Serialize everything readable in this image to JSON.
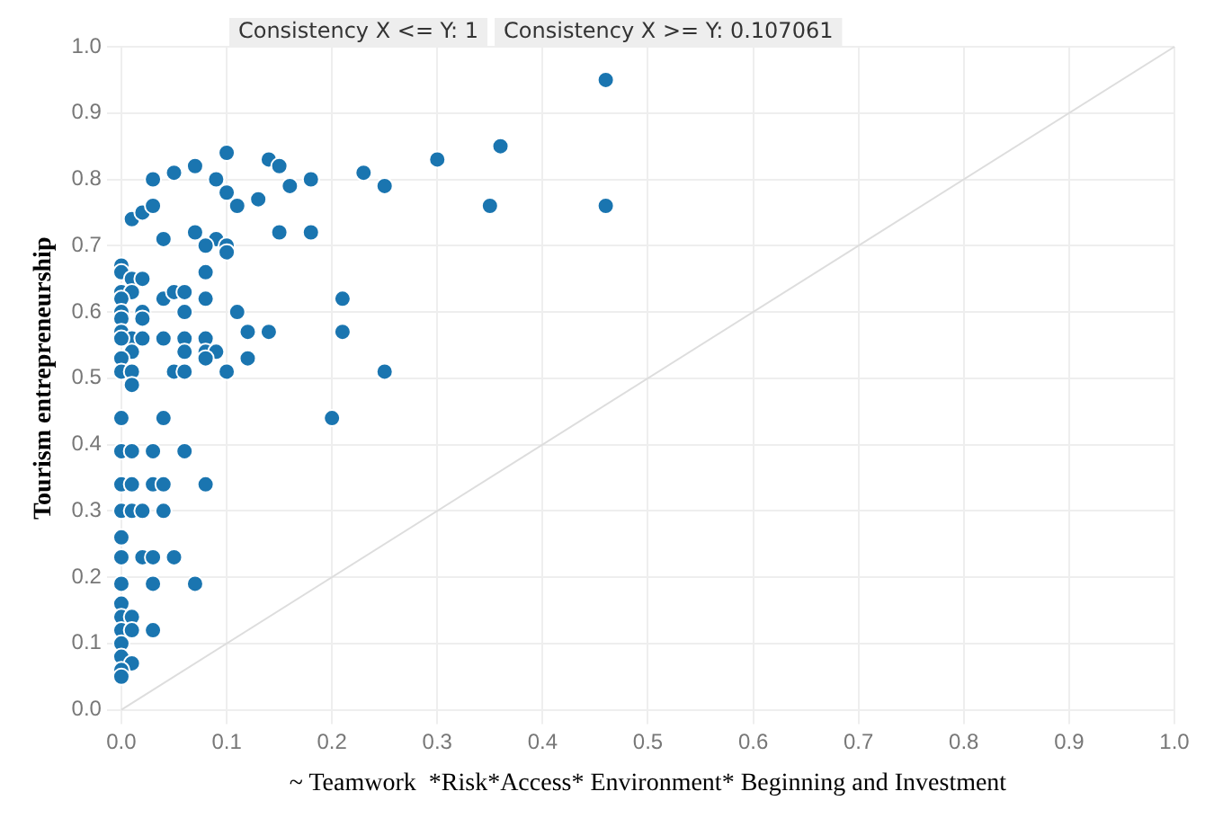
{
  "chart_data": {
    "type": "scatter",
    "xlabel": "~ Teamwork  *Risk*Access* Environment* Beginning and Investment",
    "ylabel": "Tourism entrepreneurship",
    "annotations": [
      "Consistency X <= Y: 1",
      "Consistency X >= Y: 0.107061"
    ],
    "xlim": [
      0,
      1
    ],
    "xticks": [
      {
        "value": 0,
        "label": "0.0"
      },
      0.1,
      0.2,
      0.3,
      0.4,
      0.5,
      0.6,
      0.7,
      0.8,
      0.9,
      {
        "value": 1,
        "label": "1.0"
      }
    ],
    "ylim": [
      0,
      1
    ],
    "yticks": [
      {
        "value": 0,
        "label": "0.0"
      },
      0.1,
      0.2,
      0.3,
      0.4,
      0.5,
      0.6,
      0.7,
      0.8,
      0.9,
      {
        "value": 1,
        "label": "1.0"
      }
    ],
    "grid": true,
    "marker": "circle",
    "series": [
      {
        "color": "#1a75b0",
        "x": [
          0.46,
          0.36,
          0.3,
          0.35,
          0.46,
          0.23,
          0.25,
          0.21,
          0.21,
          0.25,
          0.15,
          0.18,
          0.16,
          0.18,
          0.14,
          0.15,
          0.14,
          0.1,
          0.03,
          0.05,
          0.07,
          0.09,
          0.1,
          0.11,
          0.13,
          0.01,
          0.02,
          0.03,
          0.04,
          0.07,
          0.09,
          0.08,
          0.1,
          0.1,
          0,
          0,
          0.01,
          0.02,
          0.08,
          0,
          0.01,
          0.04,
          0.05,
          0.06,
          0.08,
          0,
          0,
          0.02,
          0,
          0.02,
          0.06,
          0.11,
          0.12,
          0,
          0.01,
          0,
          0.02,
          0.04,
          0.06,
          0.08,
          0.01,
          0.06,
          0.08,
          0.09,
          0,
          0.08,
          0.12,
          0,
          0.01,
          0.05,
          0.06,
          0.1,
          0.01,
          0,
          0.04,
          0.2,
          0,
          0.01,
          0.03,
          0.06,
          0,
          0.01,
          0.03,
          0.04,
          0.08,
          0,
          0.01,
          0.02,
          0.04,
          0,
          0,
          0.02,
          0.03,
          0.05,
          0,
          0.03,
          0.07,
          0,
          0,
          0.01,
          0,
          0.01,
          0.03,
          0,
          0,
          0.01,
          0,
          0
        ],
        "values": [
          0.95,
          0.85,
          0.83,
          0.76,
          0.76,
          0.81,
          0.79,
          0.62,
          0.57,
          0.51,
          0.72,
          0.72,
          0.79,
          0.8,
          0.83,
          0.82,
          0.57,
          0.84,
          0.8,
          0.81,
          0.82,
          0.8,
          0.78,
          0.76,
          0.77,
          0.74,
          0.75,
          0.76,
          0.71,
          0.72,
          0.71,
          0.7,
          0.7,
          0.69,
          0.67,
          0.66,
          0.65,
          0.65,
          0.66,
          0.63,
          0.63,
          0.62,
          0.63,
          0.63,
          0.62,
          0.62,
          0.6,
          0.6,
          0.59,
          0.59,
          0.6,
          0.6,
          0.57,
          0.57,
          0.56,
          0.56,
          0.56,
          0.56,
          0.56,
          0.56,
          0.54,
          0.54,
          0.54,
          0.54,
          0.53,
          0.53,
          0.53,
          0.51,
          0.51,
          0.51,
          0.51,
          0.51,
          0.49,
          0.44,
          0.44,
          0.44,
          0.39,
          0.39,
          0.39,
          0.39,
          0.34,
          0.34,
          0.34,
          0.34,
          0.34,
          0.3,
          0.3,
          0.3,
          0.3,
          0.26,
          0.23,
          0.23,
          0.23,
          0.23,
          0.19,
          0.19,
          0.19,
          0.16,
          0.14,
          0.14,
          0.12,
          0.12,
          0.12,
          0.1,
          0.08,
          0.07,
          0.06,
          0.05
        ]
      },
      {
        "type": "line",
        "color": "#dddddd",
        "x": [
          0,
          1
        ],
        "values": [
          0,
          1
        ],
        "marker": "none"
      }
    ]
  }
}
